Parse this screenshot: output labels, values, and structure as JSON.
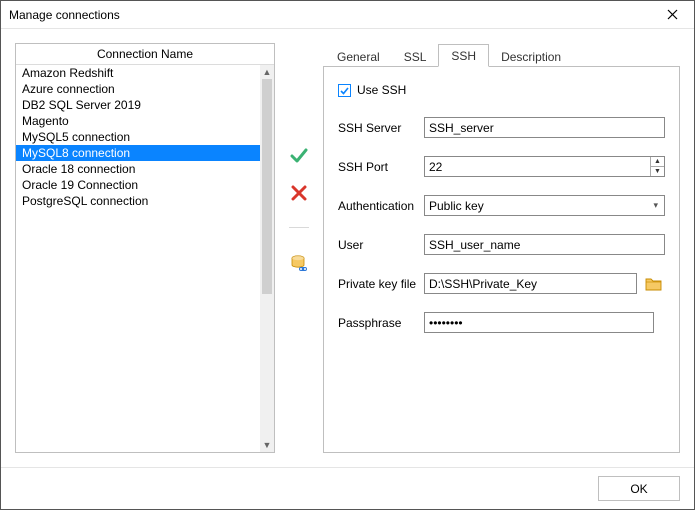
{
  "window": {
    "title": "Manage connections"
  },
  "connections": {
    "header": "Connection Name",
    "items": [
      "Amazon Redshift",
      "Azure connection",
      "DB2 SQL Server 2019",
      "Magento",
      "MySQL5 connection",
      "MySQL8 connection",
      "Oracle 18 connection",
      "Oracle 19 Connection",
      "PostgreSQL connection"
    ],
    "selected_index": 5
  },
  "toolbar": {
    "apply_color": "#3bb273",
    "delete_color": "#d9362b",
    "db_icon_body": "#f6c964",
    "db_icon_link": "#2b77d8"
  },
  "tabs": {
    "items": [
      "General",
      "SSL",
      "SSH",
      "Description"
    ],
    "active_index": 2
  },
  "ssh": {
    "use_ssh_label": "Use SSH",
    "use_ssh_checked": true,
    "server_label": "SSH Server",
    "server_value": "SSH_server",
    "port_label": "SSH Port",
    "port_value": "22",
    "auth_label": "Authentication",
    "auth_value": "Public key",
    "user_label": "User",
    "user_value": "SSH_user_name",
    "key_label": "Private key file",
    "key_value": "D:\\SSH\\Private_Key",
    "pass_label": "Passphrase",
    "pass_mask": "••••••••"
  },
  "footer": {
    "ok_label": "OK"
  },
  "colors": {
    "selection": "#0a84ff",
    "border": "#bfbfbf",
    "folder_fill": "#f6c964",
    "folder_stroke": "#c78b00"
  }
}
